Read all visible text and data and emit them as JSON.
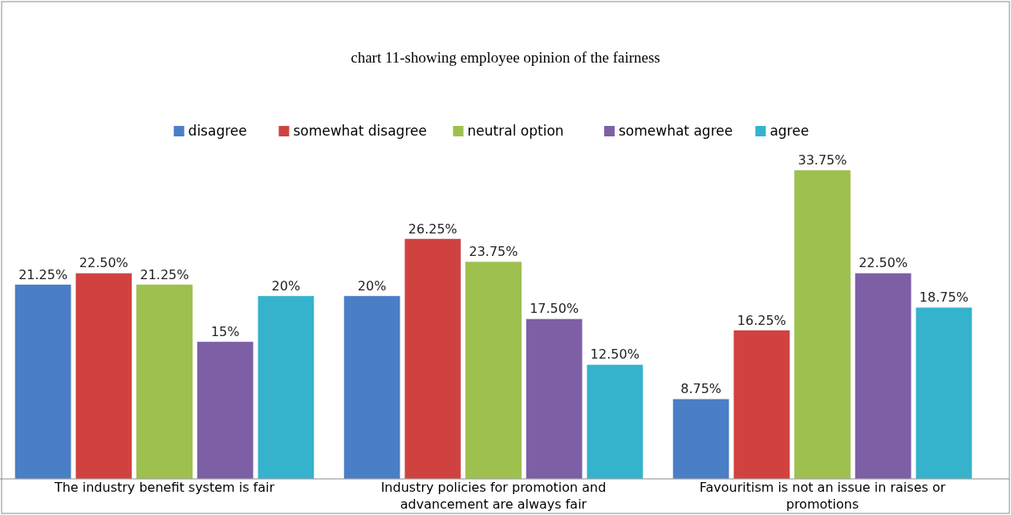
{
  "chart_data": {
    "type": "bar",
    "title": "chart 11-showing employee opinion of the fairness",
    "categories": [
      "The industry benefit system is fair",
      "Industry policies for promotion and advancement are always fair",
      "Favouritism is not an issue in raises or promotions"
    ],
    "series": [
      {
        "name": "disagree",
        "color": "#4a7ec6",
        "values": [
          21.25,
          20,
          8.75
        ],
        "value_labels": [
          "21.25%",
          "20%",
          "8.75%"
        ]
      },
      {
        "name": "somewhat disagree",
        "color": "#d0423f",
        "values": [
          22.5,
          26.25,
          16.25
        ],
        "value_labels": [
          "22.50%",
          "26.25%",
          "16.25%"
        ]
      },
      {
        "name": "neutral option",
        "color": "#9dc04f",
        "values": [
          21.25,
          23.75,
          33.75
        ],
        "value_labels": [
          "21.25%",
          "23.75%",
          "33.75%"
        ]
      },
      {
        "name": "somewhat agree",
        "color": "#7d5fa6",
        "values": [
          15,
          17.5,
          22.5
        ],
        "value_labels": [
          "15%",
          "17.50%",
          "22.50%"
        ]
      },
      {
        "name": "agree",
        "color": "#35b3cc",
        "values": [
          20,
          12.5,
          18.75
        ],
        "value_labels": [
          "20%",
          "12.50%",
          "18.75%"
        ]
      }
    ],
    "legend": "top"
  }
}
